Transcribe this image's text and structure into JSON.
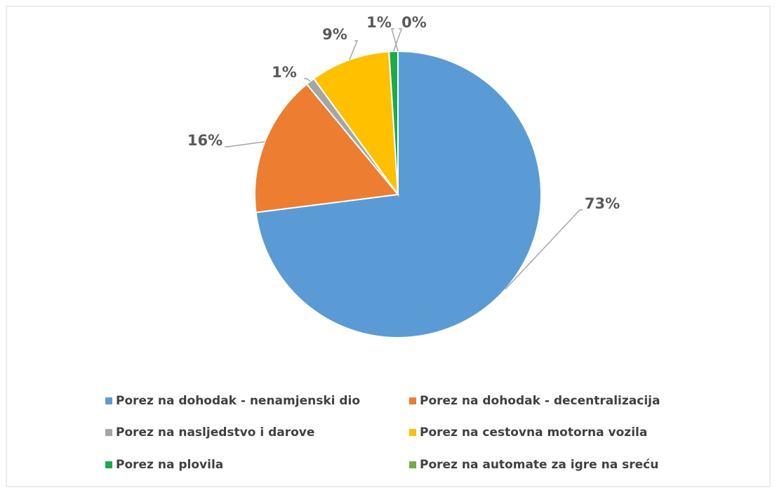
{
  "chart_data": {
    "type": "pie",
    "categories": [
      "Porez na dohodak - nenamjenski dio",
      "Porez na dohodak - decentralizacija",
      "Porez na nasljedstvo i darove",
      "Porez na cestovna motorna vozila",
      "Porez na plovila",
      "Porez na automate za igre na sreću"
    ],
    "values": [
      73,
      16,
      1,
      9,
      1,
      0
    ],
    "value_labels": [
      "73%",
      "16%",
      "1%",
      "9%",
      "1%",
      "0%"
    ],
    "colors": [
      "#5b9bd5",
      "#ed7d31",
      "#a5a5a5",
      "#ffc000",
      "#1aab4b",
      "#70ad47"
    ]
  }
}
